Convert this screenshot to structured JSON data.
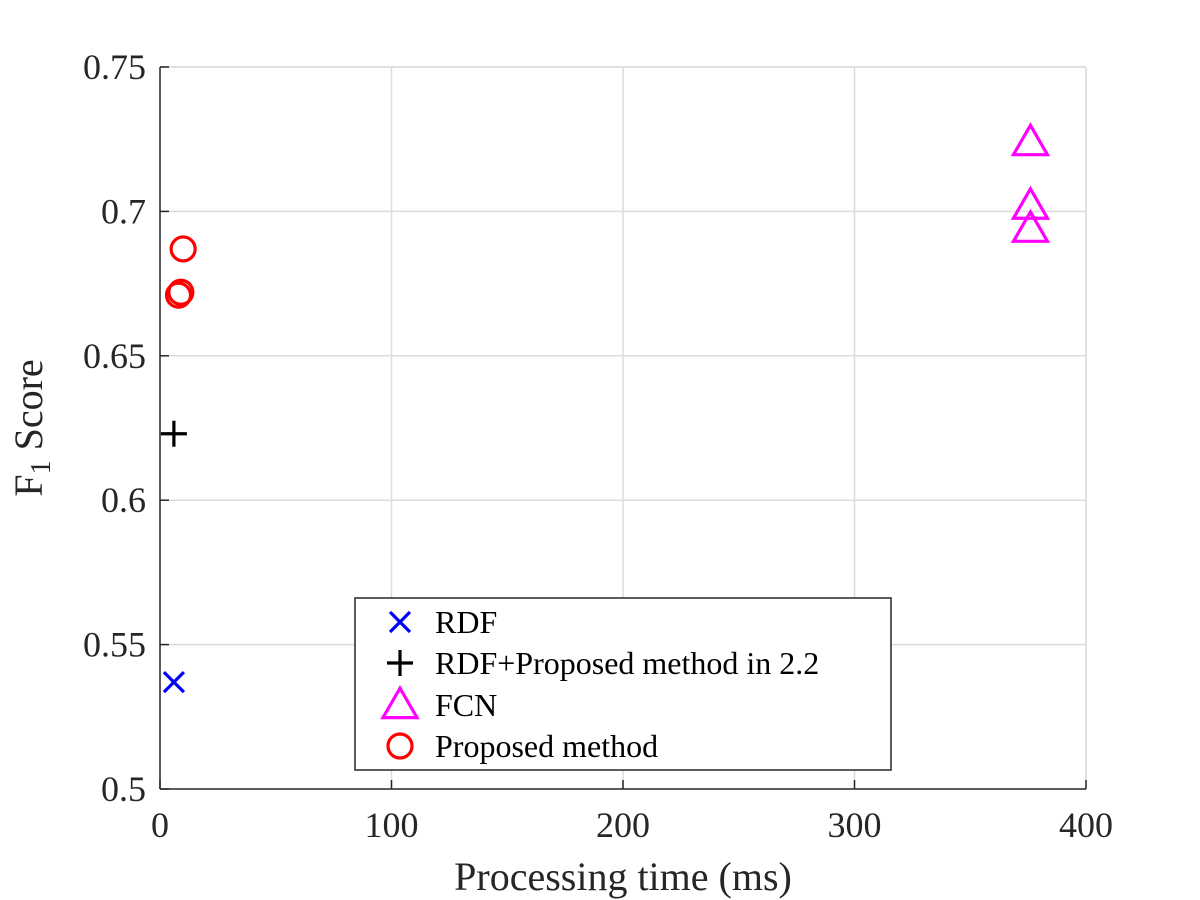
{
  "chart_data": {
    "type": "scatter",
    "title": "",
    "xlabel": "Processing time (ms)",
    "ylabel": {
      "main": "F",
      "subscript": "1",
      "suffix": " Score"
    },
    "xlim": [
      0,
      400
    ],
    "ylim": [
      0.5,
      0.75
    ],
    "xticks": [
      0,
      100,
      200,
      300,
      400
    ],
    "xtick_labels": [
      "0",
      "100",
      "200",
      "300",
      "400"
    ],
    "yticks": [
      0.5,
      0.55,
      0.6,
      0.65,
      0.7,
      0.75
    ],
    "ytick_labels": [
      "0.5",
      "0.55",
      "0.6",
      "0.65",
      "0.7",
      "0.75"
    ],
    "grid": true,
    "legend_position": "bottom-center",
    "series": [
      {
        "name": "RDF",
        "marker": "x",
        "color": "#0000ff",
        "points": [
          [
            6,
            0.537
          ]
        ]
      },
      {
        "name": "RDF+Proposed method in 2.2",
        "marker": "plus",
        "color": "#000000",
        "points": [
          [
            6,
            0.623
          ]
        ]
      },
      {
        "name": "FCN",
        "marker": "triangle",
        "color": "#ff00ff",
        "points": [
          [
            376,
            0.724
          ],
          [
            376,
            0.702
          ],
          [
            376,
            0.694
          ]
        ]
      },
      {
        "name": "Proposed method",
        "marker": "circle",
        "color": "#ff0000",
        "points": [
          [
            10,
            0.687
          ],
          [
            8,
            0.671
          ],
          [
            9,
            0.672
          ]
        ]
      }
    ]
  }
}
